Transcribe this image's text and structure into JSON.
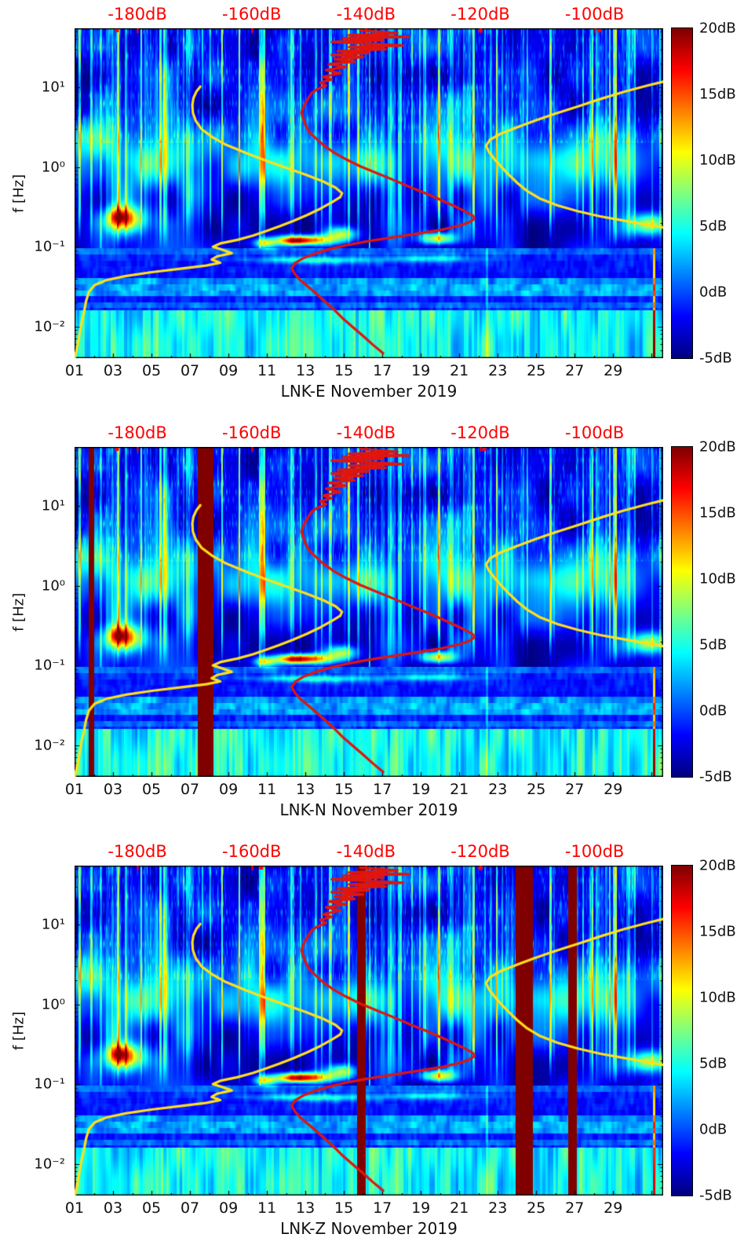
{
  "chart_data": {
    "type": "heatmap",
    "subtype": "seismic-spectrogram-with-psd-curves",
    "colormap": "jet",
    "db_axis_plot_edges": {
      "left_db": -191,
      "right_db": -88
    },
    "panels": [
      {
        "title": "LNK-E November 2019",
        "y_axis": {
          "label": "f [Hz]",
          "scale": "log10",
          "min_hz": 0.004,
          "max_hz": 55,
          "major_ticks_hz": [
            10,
            1,
            0.1,
            0.01
          ],
          "major_tick_labels": [
            "10¹",
            "10⁰",
            "10⁻¹",
            "10⁻²"
          ]
        },
        "x_axis": {
          "min_day": 1,
          "max_day": 31.6,
          "tick_days": [
            1,
            3,
            5,
            7,
            9,
            11,
            13,
            15,
            17,
            19,
            21,
            23,
            25,
            27,
            29
          ],
          "tick_labels": [
            "01",
            "03",
            "05",
            "07",
            "09",
            "11",
            "13",
            "15",
            "17",
            "19",
            "21",
            "23",
            "25",
            "27",
            "29"
          ]
        },
        "top_axis": {
          "color": "#ff0000",
          "unit": "dB",
          "tick_values": [
            -180,
            -160,
            -140,
            -120,
            -100
          ],
          "tick_labels": [
            "-180dB",
            "-160dB",
            "-140dB",
            "-120dB",
            "-100dB"
          ],
          "edge_mark_days": [
            3.2,
            22.1,
            28.3
          ]
        },
        "colorbar": {
          "min_db": -5,
          "max_db": 20,
          "tick_values": [
            20,
            15,
            10,
            5,
            0,
            -5
          ],
          "tick_labels": [
            "20dB",
            "15dB",
            "10dB",
            "5dB",
            "0dB",
            "-5dB"
          ]
        },
        "dropout_bars_days": [],
        "noise_seed": 1.0
      },
      {
        "title": "LNK-N November 2019",
        "y_axis": {
          "label": "f [Hz]",
          "scale": "log10",
          "min_hz": 0.004,
          "max_hz": 55,
          "major_ticks_hz": [
            10,
            1,
            0.1,
            0.01
          ],
          "major_tick_labels": [
            "10¹",
            "10⁰",
            "10⁻¹",
            "10⁻²"
          ]
        },
        "x_axis": {
          "min_day": 1,
          "max_day": 31.6,
          "tick_days": [
            1,
            3,
            5,
            7,
            9,
            11,
            13,
            15,
            17,
            19,
            21,
            23,
            25,
            27,
            29
          ],
          "tick_labels": [
            "01",
            "03",
            "05",
            "07",
            "09",
            "11",
            "13",
            "15",
            "17",
            "19",
            "21",
            "23",
            "25",
            "27",
            "29"
          ]
        },
        "top_axis": {
          "color": "#ff0000",
          "unit": "dB",
          "tick_values": [
            -180,
            -160,
            -140,
            -120,
            -100
          ],
          "tick_labels": [
            "-180dB",
            "-160dB",
            "-140dB",
            "-120dB",
            "-100dB"
          ],
          "edge_mark_days": [
            3.2,
            22.3
          ]
        },
        "colorbar": {
          "min_db": -5,
          "max_db": 20,
          "tick_values": [
            20,
            15,
            10,
            5,
            0,
            -5
          ],
          "tick_labels": [
            "20dB",
            "15dB",
            "10dB",
            "5dB",
            "0dB",
            "-5dB"
          ]
        },
        "dropout_bars_days": [
          {
            "day": 1.85,
            "width": 0.3
          },
          {
            "day": 7.8,
            "width": 0.8
          }
        ],
        "noise_seed": 1.2
      },
      {
        "title": "LNK-Z November 2019",
        "y_axis": {
          "label": "f [Hz]",
          "scale": "log10",
          "min_hz": 0.004,
          "max_hz": 55,
          "major_ticks_hz": [
            10,
            1,
            0.1,
            0.01
          ],
          "major_tick_labels": [
            "10¹",
            "10⁰",
            "10⁻¹",
            "10⁻²"
          ]
        },
        "x_axis": {
          "min_day": 1,
          "max_day": 31.6,
          "tick_days": [
            1,
            3,
            5,
            7,
            9,
            11,
            13,
            15,
            17,
            19,
            21,
            23,
            25,
            27,
            29
          ],
          "tick_labels": [
            "01",
            "03",
            "05",
            "07",
            "09",
            "11",
            "13",
            "15",
            "17",
            "19",
            "21",
            "23",
            "25",
            "27",
            "29"
          ]
        },
        "top_axis": {
          "color": "#ff0000",
          "unit": "dB",
          "tick_values": [
            -180,
            -160,
            -140,
            -120,
            -100
          ],
          "tick_labels": [
            "-180dB",
            "-160dB",
            "-140dB",
            "-120dB",
            "-100dB"
          ],
          "edge_mark_days": [
            10.7,
            22.1
          ]
        },
        "colorbar": {
          "min_db": -5,
          "max_db": 20,
          "tick_values": [
            20,
            15,
            10,
            5,
            0,
            -5
          ],
          "tick_labels": [
            "20dB",
            "15dB",
            "10dB",
            "5dB",
            "0dB",
            "-5dB"
          ]
        },
        "dropout_bars_days": [
          {
            "day": 15.9,
            "width": 0.45
          },
          {
            "day": 24.4,
            "width": 0.9
          },
          {
            "day": 26.9,
            "width": 0.45
          }
        ],
        "noise_seed": 1.4
      }
    ],
    "curves": [
      {
        "name": "yellow-curve",
        "color": "#ffe01a",
        "width": 3.2,
        "points_db_hz": [
          [
            -191,
            0.004
          ],
          [
            -190.6,
            0.0052
          ],
          [
            -190.3,
            0.0068
          ],
          [
            -190,
            0.009
          ],
          [
            -189.7,
            0.0118
          ],
          [
            -189.3,
            0.0155
          ],
          [
            -189,
            0.0205
          ],
          [
            -188.5,
            0.027
          ],
          [
            -187.5,
            0.033
          ],
          [
            -185.5,
            0.038
          ],
          [
            -182,
            0.043
          ],
          [
            -177.5,
            0.048
          ],
          [
            -172.5,
            0.053
          ],
          [
            -168,
            0.058
          ],
          [
            -165.5,
            0.063
          ],
          [
            -167,
            0.069
          ],
          [
            -166,
            0.076
          ],
          [
            -163.5,
            0.083
          ],
          [
            -165,
            0.091
          ],
          [
            -166.8,
            0.1
          ],
          [
            -165.5,
            0.11
          ],
          [
            -162.5,
            0.122
          ],
          [
            -159.8,
            0.138
          ],
          [
            -157.5,
            0.157
          ],
          [
            -155.2,
            0.18
          ],
          [
            -152.8,
            0.21
          ],
          [
            -150.3,
            0.25
          ],
          [
            -148,
            0.3
          ],
          [
            -146,
            0.36
          ],
          [
            -144.5,
            0.42
          ],
          [
            -144.2,
            0.47
          ],
          [
            -145.3,
            0.55
          ],
          [
            -147.5,
            0.66
          ],
          [
            -150.5,
            0.8
          ],
          [
            -154,
            0.98
          ],
          [
            -157.5,
            1.2
          ],
          [
            -161,
            1.5
          ],
          [
            -164.5,
            1.9
          ],
          [
            -167,
            2.4
          ],
          [
            -168.8,
            3
          ],
          [
            -169.8,
            3.8
          ],
          [
            -170.3,
            4.8
          ],
          [
            -170.4,
            6
          ],
          [
            -170.2,
            7.3
          ],
          [
            -169.7,
            8.8
          ],
          [
            -169,
            10.2
          ]
        ]
      },
      {
        "name": "yellow-curve-right-branch",
        "color": "#ffe01a",
        "width": 3.2,
        "points_db_hz": [
          [
            -86,
            0.165
          ],
          [
            -90,
            0.185
          ],
          [
            -94.5,
            0.21
          ],
          [
            -99,
            0.24
          ],
          [
            -103,
            0.28
          ],
          [
            -106.5,
            0.33
          ],
          [
            -109.5,
            0.4
          ],
          [
            -111.8,
            0.5
          ],
          [
            -113.5,
            0.63
          ],
          [
            -115,
            0.8
          ],
          [
            -116.3,
            1.0
          ],
          [
            -117.5,
            1.25
          ],
          [
            -118.5,
            1.55
          ],
          [
            -119,
            1.85
          ],
          [
            -118.3,
            2.2
          ],
          [
            -116.5,
            2.6
          ],
          [
            -113.8,
            3.1
          ],
          [
            -110.5,
            3.8
          ],
          [
            -106.8,
            4.7
          ],
          [
            -102.8,
            5.8
          ],
          [
            -98.8,
            7.2
          ],
          [
            -94.8,
            8.8
          ],
          [
            -90.8,
            10.5
          ],
          [
            -87.5,
            12
          ]
        ]
      },
      {
        "name": "red-curve",
        "color": "#e0150d",
        "width": 3.2,
        "points_db_hz": [
          [
            -141,
            52
          ],
          [
            -134.5,
            48
          ],
          [
            -143,
            45
          ],
          [
            -132.5,
            43
          ],
          [
            -144,
            41
          ],
          [
            -137,
            39
          ],
          [
            -146,
            37
          ],
          [
            -138.5,
            35
          ],
          [
            -133.5,
            33.5
          ],
          [
            -143,
            32
          ],
          [
            -136.5,
            30
          ],
          [
            -145,
            28.5
          ],
          [
            -139.5,
            27
          ],
          [
            -146,
            25.5
          ],
          [
            -140.5,
            24
          ],
          [
            -145.5,
            22.5
          ],
          [
            -142,
            21
          ],
          [
            -146.5,
            19.5
          ],
          [
            -143.5,
            18
          ],
          [
            -147,
            16.5
          ],
          [
            -144.5,
            15
          ],
          [
            -147.5,
            13.5
          ],
          [
            -146,
            12.5
          ],
          [
            -148,
            11.5
          ],
          [
            -147,
            10.5
          ],
          [
            -148.5,
            9.5
          ],
          [
            -149.5,
            8.5
          ],
          [
            -150,
            7.5
          ],
          [
            -150.5,
            6.5
          ],
          [
            -151,
            5.6
          ],
          [
            -151.3,
            4.8
          ],
          [
            -151,
            4.1
          ],
          [
            -150.6,
            3.4
          ],
          [
            -150,
            2.8
          ],
          [
            -148.8,
            2.3
          ],
          [
            -147.5,
            1.9
          ],
          [
            -145.8,
            1.55
          ],
          [
            -143.5,
            1.25
          ],
          [
            -141,
            1.02
          ],
          [
            -138,
            0.83
          ],
          [
            -135,
            0.68
          ],
          [
            -132,
            0.55
          ],
          [
            -129,
            0.45
          ],
          [
            -126.3,
            0.37
          ],
          [
            -124,
            0.31
          ],
          [
            -122.3,
            0.27
          ],
          [
            -121.3,
            0.245
          ],
          [
            -121,
            0.225
          ],
          [
            -121.8,
            0.205
          ],
          [
            -123.5,
            0.185
          ],
          [
            -126.5,
            0.165
          ],
          [
            -130.5,
            0.148
          ],
          [
            -135,
            0.132
          ],
          [
            -139.5,
            0.118
          ],
          [
            -143,
            0.106
          ],
          [
            -146,
            0.095
          ],
          [
            -148.5,
            0.084
          ],
          [
            -150.8,
            0.073
          ],
          [
            -152.3,
            0.063
          ],
          [
            -153,
            0.054
          ],
          [
            -152.5,
            0.046
          ],
          [
            -151.5,
            0.038
          ],
          [
            -150,
            0.031
          ],
          [
            -148.5,
            0.025
          ],
          [
            -147,
            0.02
          ],
          [
            -145.5,
            0.016
          ],
          [
            -144,
            0.0125
          ],
          [
            -142.3,
            0.0098
          ],
          [
            -140.5,
            0.0076
          ],
          [
            -138.8,
            0.0059
          ],
          [
            -137,
            0.0046
          ]
        ]
      }
    ],
    "spectrogram_model": {
      "base_db": -2.6,
      "value_min_db": -5,
      "value_max_db": 20,
      "dropout_value_db": 25,
      "hot_blobs": [
        {
          "day": 3.6,
          "day_sigma": 1.0,
          "log10f": -0.66,
          "logf_sigma": 0.17,
          "amp_db": 16
        },
        {
          "day": 3.3,
          "day_sigma": 0.45,
          "log10f": -0.62,
          "logf_sigma": 0.09,
          "amp_db": 7
        },
        {
          "day": 12.9,
          "day_sigma": 1.5,
          "log10f": -0.92,
          "logf_sigma": 0.065,
          "amp_db": 20
        },
        {
          "day": 12.4,
          "day_sigma": 0.7,
          "log10f": -0.93,
          "logf_sigma": 0.05,
          "amp_db": 6
        },
        {
          "day": 10.9,
          "day_sigma": 0.55,
          "log10f": -0.96,
          "logf_sigma": 0.06,
          "amp_db": 11
        },
        {
          "day": 14.9,
          "day_sigma": 0.8,
          "log10f": -0.84,
          "logf_sigma": 0.09,
          "amp_db": 12
        },
        {
          "day": 19.9,
          "day_sigma": 0.85,
          "log10f": -0.9,
          "logf_sigma": 0.075,
          "amp_db": 15
        },
        {
          "day": 30.9,
          "day_sigma": 1.1,
          "log10f": -0.72,
          "logf_sigma": 0.14,
          "amp_db": 13
        },
        {
          "day": 13.5,
          "day_sigma": 3.0,
          "log10f": -1.17,
          "logf_sigma": 0.045,
          "amp_db": 7
        },
        {
          "day": 19.5,
          "day_sigma": 2.2,
          "log10f": -1.15,
          "logf_sigma": 0.045,
          "amp_db": 6
        }
      ]
    }
  }
}
